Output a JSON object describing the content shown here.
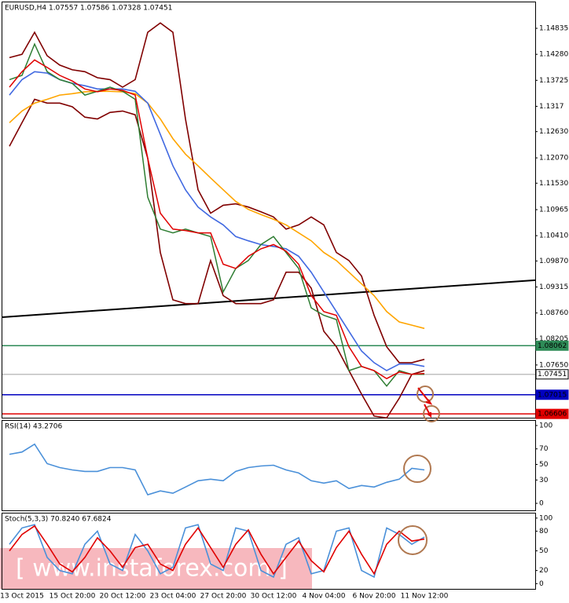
{
  "chart_data": [
    {
      "type": "line",
      "title": "EURUSD,H4 1.07557 1.07586 1.07328 1.07451",
      "ylim": [
        1.06525,
        1.15389
      ],
      "yticks": [
        1.14835,
        {
          "value": 1.1428,
          "label": "1.14280"
        },
        1.13725,
        1.1317,
        {
          "value": 1.1263,
          "label": "1.12630"
        },
        {
          "value": 1.1207,
          "label": "1.12070"
        },
        {
          "value": 1.1153,
          "label": "1.11530"
        },
        1.10965,
        {
          "value": 1.1041,
          "label": "1.10410"
        },
        {
          "value": 1.0987,
          "label": "1.09870"
        },
        1.09315,
        {
          "value": 1.0876,
          "label": "1.08760"
        },
        1.08205,
        {
          "value": 1.0765,
          "label": "1.07650"
        }
      ],
      "series": [
        {
          "name": "Bollinger upper",
          "color": "#800000",
          "values": [
            1.1421,
            1.1428,
            1.1475,
            1.1425,
            1.1405,
            1.1395,
            1.1391,
            1.1378,
            1.1374,
            1.1358,
            1.1374,
            1.1475,
            1.1495,
            1.1475,
            1.129,
            1.1139,
            1.1089,
            1.1106,
            1.1109,
            1.1102,
            1.1092,
            1.1081,
            1.1055,
            1.1064,
            1.1081,
            1.1064,
            1.1005,
            1.0988,
            1.0955,
            1.0871,
            1.0804,
            1.077,
            1.077,
            1.0777
          ]
        },
        {
          "name": "Bollinger lower",
          "color": "#800000",
          "values": [
            1.1232,
            1.1282,
            1.1332,
            1.1324,
            1.1324,
            1.1316,
            1.1294,
            1.129,
            1.1304,
            1.1307,
            1.1299,
            1.1206,
            1.1005,
            1.0904,
            1.0896,
            1.0896,
            1.0988,
            1.0913,
            1.0896,
            1.0896,
            1.0896,
            1.0904,
            1.0963,
            1.0963,
            1.0929,
            1.0837,
            1.0804,
            1.0753,
            1.0703,
            1.0656,
            1.0652,
            1.0694,
            1.0745,
            1.0753
          ]
        },
        {
          "name": "Slow MA",
          "color": "#ffa500",
          "values": [
            1.1282,
            1.1307,
            1.1324,
            1.1332,
            1.1341,
            1.1344,
            1.1348,
            1.1349,
            1.1349,
            1.1348,
            1.1344,
            1.1324,
            1.129,
            1.1248,
            1.1215,
            1.119,
            1.1164,
            1.1139,
            1.1114,
            1.1097,
            1.1086,
            1.1076,
            1.1064,
            1.1047,
            1.103,
            1.1005,
            1.0988,
            1.0963,
            1.0938,
            1.0913,
            1.0879,
            1.0857,
            1.085,
            1.0843
          ]
        },
        {
          "name": "Medium MA",
          "color": "#4169e1",
          "values": [
            1.1341,
            1.1374,
            1.1391,
            1.1388,
            1.1374,
            1.1366,
            1.1361,
            1.1354,
            1.1354,
            1.1354,
            1.1349,
            1.1324,
            1.1257,
            1.119,
            1.1139,
            1.1102,
            1.1081,
            1.1064,
            1.1039,
            1.103,
            1.1022,
            1.1018,
            1.1013,
            1.0997,
            1.0963,
            1.0921,
            1.0879,
            1.0837,
            1.0795,
            1.077,
            1.0753,
            1.0767,
            1.0767,
            1.0762
          ]
        },
        {
          "name": "Close",
          "color": "#2e7d32",
          "values": [
            1.1374,
            1.1383,
            1.145,
            1.1391,
            1.1374,
            1.1366,
            1.1341,
            1.1349,
            1.1358,
            1.1349,
            1.1332,
            1.1123,
            1.1055,
            1.1047,
            1.1055,
            1.1047,
            1.1039,
            1.0921,
            1.0971,
            1.0988,
            1.1022,
            1.1039,
            1.1005,
            1.0971,
            1.0887,
            1.0871,
            1.0862,
            1.0753,
            1.0762,
            1.0753,
            1.072,
            1.0753,
            1.0745,
            1.0745
          ]
        },
        {
          "name": "Fast MA",
          "color": "#e00000",
          "values": [
            1.1358,
            1.1391,
            1.1416,
            1.14,
            1.1383,
            1.1371,
            1.1354,
            1.1348,
            1.1354,
            1.1351,
            1.1341,
            1.1206,
            1.1089,
            1.1055,
            1.1052,
            1.1047,
            1.1047,
            1.098,
            1.0971,
            1.0997,
            1.1013,
            1.1022,
            1.1008,
            1.098,
            1.0913,
            1.0879,
            1.0871,
            1.0804,
            1.0762,
            1.0753,
            1.0736,
            1.075,
            1.0745,
            1.0747
          ]
        }
      ],
      "trend_line": {
        "values": [
          1.0867,
          1.0946
        ],
        "color": "#000000"
      },
      "levels": [
        {
          "value": 1.08062,
          "color": "#2e8b57"
        },
        {
          "value": 1.07451,
          "color": "#c0c0c0"
        },
        {
          "value": 1.07015,
          "color": "#0000c0"
        },
        {
          "value": 1.06606,
          "color": "#e00000"
        }
      ]
    },
    {
      "type": "line",
      "title": "RSI(14) 43.2706",
      "ylim": [
        -9,
        106
      ],
      "yticks": [
        100,
        70,
        50,
        30,
        0
      ],
      "series": [
        {
          "name": "RSI",
          "color": "#4a90d9",
          "values": [
            63,
            66,
            76,
            51,
            46,
            43,
            41,
            41,
            46,
            46,
            43,
            11,
            16,
            13,
            21,
            29,
            31,
            29,
            41,
            46,
            48,
            49,
            43,
            39,
            29,
            26,
            29,
            19,
            23,
            21,
            27,
            31,
            45,
            43
          ]
        }
      ]
    },
    {
      "type": "line",
      "title": "Stoch(5,3,3) 70.8240 67.6824",
      "ylim": [
        -8,
        107
      ],
      "yticks": [
        100,
        80,
        50,
        20,
        0
      ],
      "categories": [
        null,
        "13 Oct 2015",
        null,
        null,
        null,
        "15 Oct 20:00",
        null,
        null,
        null,
        "20 Oct 12:00",
        null,
        null,
        null,
        "23 Oct 04:00",
        null,
        null,
        null,
        "27 Oct 20:00",
        null,
        null,
        null,
        "30 Oct 12:00",
        null,
        null,
        null,
        "4 Nov 04:00",
        null,
        null,
        null,
        "6 Nov 20:00",
        null,
        null,
        null,
        "11 Nov 12:00"
      ],
      "series": [
        {
          "name": "Main",
          "color": "#4a90d9",
          "values": [
            60,
            85,
            90,
            40,
            20,
            15,
            60,
            80,
            30,
            20,
            75,
            50,
            15,
            25,
            85,
            90,
            30,
            20,
            85,
            80,
            20,
            10,
            60,
            70,
            15,
            20,
            80,
            85,
            20,
            10,
            85,
            75,
            60,
            71
          ]
        },
        {
          "name": "Signal",
          "color": "#e00000",
          "values": [
            50,
            75,
            88,
            60,
            30,
            18,
            40,
            70,
            50,
            25,
            55,
            60,
            30,
            20,
            60,
            85,
            55,
            25,
            60,
            82,
            45,
            15,
            40,
            65,
            35,
            18,
            55,
            80,
            45,
            15,
            60,
            80,
            65,
            68
          ]
        }
      ]
    }
  ],
  "watermark": "[ www.instaforex.com ]"
}
